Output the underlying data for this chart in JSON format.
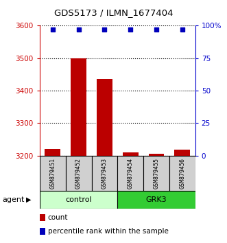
{
  "title": "GDS5173 / ILMN_1677404",
  "samples": [
    "GSM879451",
    "GSM879452",
    "GSM879453",
    "GSM879454",
    "GSM879455",
    "GSM879456"
  ],
  "count_values": [
    3220,
    3500,
    3435,
    3210,
    3205,
    3218
  ],
  "percentile_values": [
    97,
    97,
    97,
    97,
    97,
    97
  ],
  "ylim_left": [
    3200,
    3600
  ],
  "ylim_right": [
    0,
    100
  ],
  "yticks_left": [
    3200,
    3300,
    3400,
    3500,
    3600
  ],
  "yticks_right": [
    0,
    25,
    50,
    75,
    100
  ],
  "yticklabels_right": [
    "0",
    "25",
    "50",
    "75",
    "100%"
  ],
  "bar_color": "#bb0000",
  "dot_color": "#0000bb",
  "groups": [
    {
      "label": "control",
      "indices": [
        0,
        1,
        2
      ],
      "color": "#ccffcc"
    },
    {
      "label": "GRK3",
      "indices": [
        3,
        4,
        5
      ],
      "color": "#33cc33"
    }
  ],
  "agent_label": "agent",
  "legend_items": [
    {
      "color": "#bb0000",
      "label": "count"
    },
    {
      "color": "#0000bb",
      "label": "percentile rank within the sample"
    }
  ],
  "left_axis_color": "#cc0000",
  "right_axis_color": "#0000cc",
  "sample_box_color": "#d0d0d0",
  "fig_width": 3.31,
  "fig_height": 3.54,
  "dpi": 100
}
